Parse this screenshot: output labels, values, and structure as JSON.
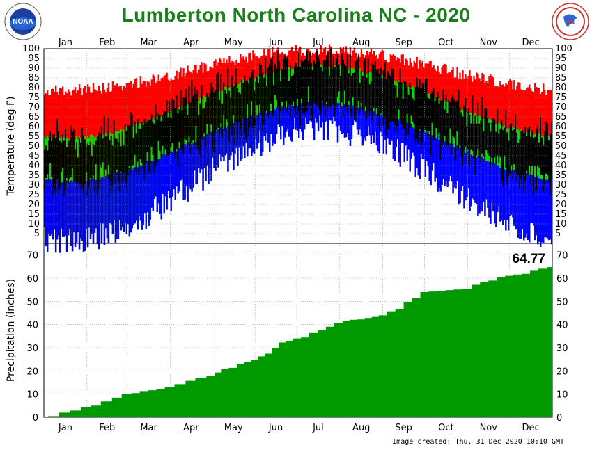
{
  "title": "Lumberton North Carolina NC - 2020",
  "created": "Image created: Thu, 31 Dec 2020 10:10 GMT",
  "logos": {
    "left": "noaa-logo",
    "right": "nws-logo",
    "left_text": "NOAA"
  },
  "colors": {
    "record_range": "#ff0000",
    "normal_range": "#00e000",
    "record_low_range": "#0000ff",
    "observed": "#000000",
    "precip": "#009900",
    "title": "#1a7f1a"
  },
  "chart_data": [
    {
      "type": "bar",
      "ylabel": "Temperature (deg F)",
      "ylim": [
        0,
        100
      ],
      "yticks": [
        5,
        10,
        15,
        20,
        25,
        30,
        35,
        40,
        45,
        50,
        55,
        60,
        65,
        70,
        75,
        80,
        85,
        90,
        95,
        100
      ],
      "months": [
        "Jan",
        "Feb",
        "Mar",
        "Apr",
        "May",
        "Jun",
        "Jul",
        "Aug",
        "Sep",
        "Oct",
        "Nov",
        "Dec"
      ],
      "grid": true,
      "series": [
        {
          "role": "record_range",
          "high_min": 78,
          "high_peak": 99,
          "low_min": 0,
          "low_peak": 58
        },
        {
          "role": "normal_range",
          "high_min": 54,
          "high_peak": 91,
          "low_min": 32,
          "low_peak": 72
        },
        {
          "role": "observed",
          "description_free": true
        }
      ]
    },
    {
      "type": "area",
      "ylabel": "Precipitation (inches)",
      "ylim": [
        0,
        75
      ],
      "yticks": [
        0,
        10,
        20,
        30,
        40,
        50,
        60,
        70
      ],
      "months": [
        "Jan",
        "Feb",
        "Mar",
        "Apr",
        "May",
        "Jun",
        "Jul",
        "Aug",
        "Sep",
        "Oct",
        "Nov",
        "Dec"
      ],
      "annotation": "64.77",
      "monthly_cumulative": [
        {
          "month": "Jan",
          "end": 4.3
        },
        {
          "month": "Feb",
          "end": 10.0
        },
        {
          "month": "Mar",
          "end": 12.9
        },
        {
          "month": "Apr",
          "end": 17.8
        },
        {
          "month": "May",
          "end": 24.6
        },
        {
          "month": "Jun",
          "end": 34.0
        },
        {
          "month": "Jul",
          "end": 40.8
        },
        {
          "month": "Aug",
          "end": 44.0
        },
        {
          "month": "Sep",
          "end": 54.0
        },
        {
          "month": "Oct",
          "end": 55.2
        },
        {
          "month": "Nov",
          "end": 61.0
        },
        {
          "month": "Dec",
          "end": 64.77
        }
      ]
    }
  ]
}
